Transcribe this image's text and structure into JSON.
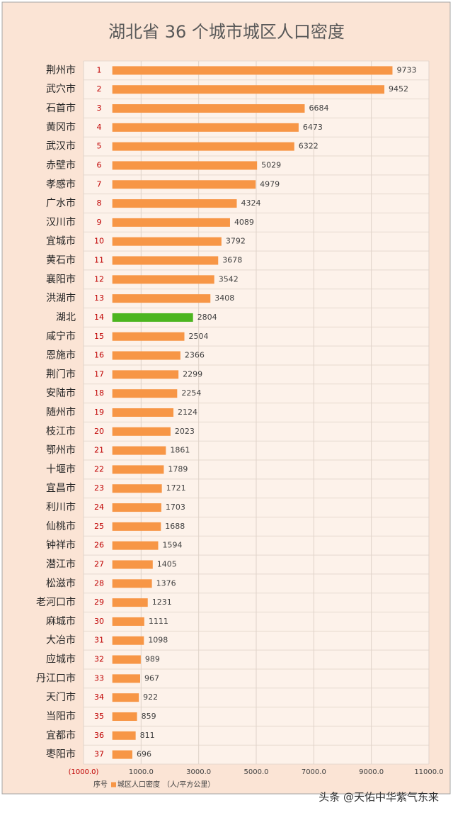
{
  "chart_data": {
    "type": "hbar",
    "title": "湖北省 36 个城市城区人口密度",
    "categories": [
      "荆州市",
      "武穴市",
      "石首市",
      "黄冈市",
      "武汉市",
      "赤壁市",
      "孝感市",
      "广水市",
      "汉川市",
      "宜城市",
      "黄石市",
      "襄阳市",
      "洪湖市",
      "湖北",
      "咸宁市",
      "恩施市",
      "荆门市",
      "安陆市",
      "随州市",
      "枝江市",
      "鄂州市",
      "十堰市",
      "宜昌市",
      "利川市",
      "仙桃市",
      "钟祥市",
      "潜江市",
      "松滋市",
      "老河口市",
      "麻城市",
      "大冶市",
      "应城市",
      "丹江口市",
      "天门市",
      "当阳市",
      "宜都市",
      "枣阳市"
    ],
    "rank_label": "序号",
    "ranks": [
      1,
      2,
      3,
      4,
      5,
      6,
      7,
      8,
      9,
      10,
      11,
      12,
      13,
      14,
      15,
      16,
      17,
      18,
      19,
      20,
      21,
      22,
      23,
      24,
      25,
      26,
      27,
      28,
      29,
      30,
      31,
      32,
      33,
      34,
      35,
      36,
      37
    ],
    "series": [
      {
        "name": "城区人口密度",
        "color": "#f79646",
        "colors": [
          "#f79646",
          "#f79646",
          "#f79646",
          "#f79646",
          "#f79646",
          "#f79646",
          "#f79646",
          "#f79646",
          "#f79646",
          "#f79646",
          "#f79646",
          "#f79646",
          "#f79646",
          "#4cb51f",
          "#f79646",
          "#f79646",
          "#f79646",
          "#f79646",
          "#f79646",
          "#f79646",
          "#f79646",
          "#f79646",
          "#f79646",
          "#f79646",
          "#f79646",
          "#f79646",
          "#f79646",
          "#f79646",
          "#f79646",
          "#f79646",
          "#f79646",
          "#f79646",
          "#f79646",
          "#f79646",
          "#f79646",
          "#f79646",
          "#f79646"
        ],
        "values": [
          9733,
          9452,
          6684,
          6473,
          6322,
          5029,
          4979,
          4324,
          4089,
          3792,
          3678,
          3542,
          3408,
          2804,
          2504,
          2366,
          2299,
          2254,
          2124,
          2023,
          1861,
          1789,
          1721,
          1703,
          1688,
          1594,
          1405,
          1376,
          1231,
          1111,
          1098,
          989,
          967,
          922,
          859,
          811,
          696
        ]
      }
    ],
    "unit": "（人/平方公里）",
    "xlim": [
      -1000,
      11000
    ],
    "xticks": [
      {
        "value": -1000,
        "label": "(1000.0)"
      },
      {
        "value": 1000,
        "label": "1000.0"
      },
      {
        "value": 3000,
        "label": "3000.0"
      },
      {
        "value": 5000,
        "label": "5000.0"
      },
      {
        "value": 7000,
        "label": "7000.0"
      },
      {
        "value": 9000,
        "label": "9000.0"
      },
      {
        "value": 11000,
        "label": "11000.0"
      }
    ],
    "grid": true,
    "watermark": "头条 @天佑中华紫气东来"
  }
}
